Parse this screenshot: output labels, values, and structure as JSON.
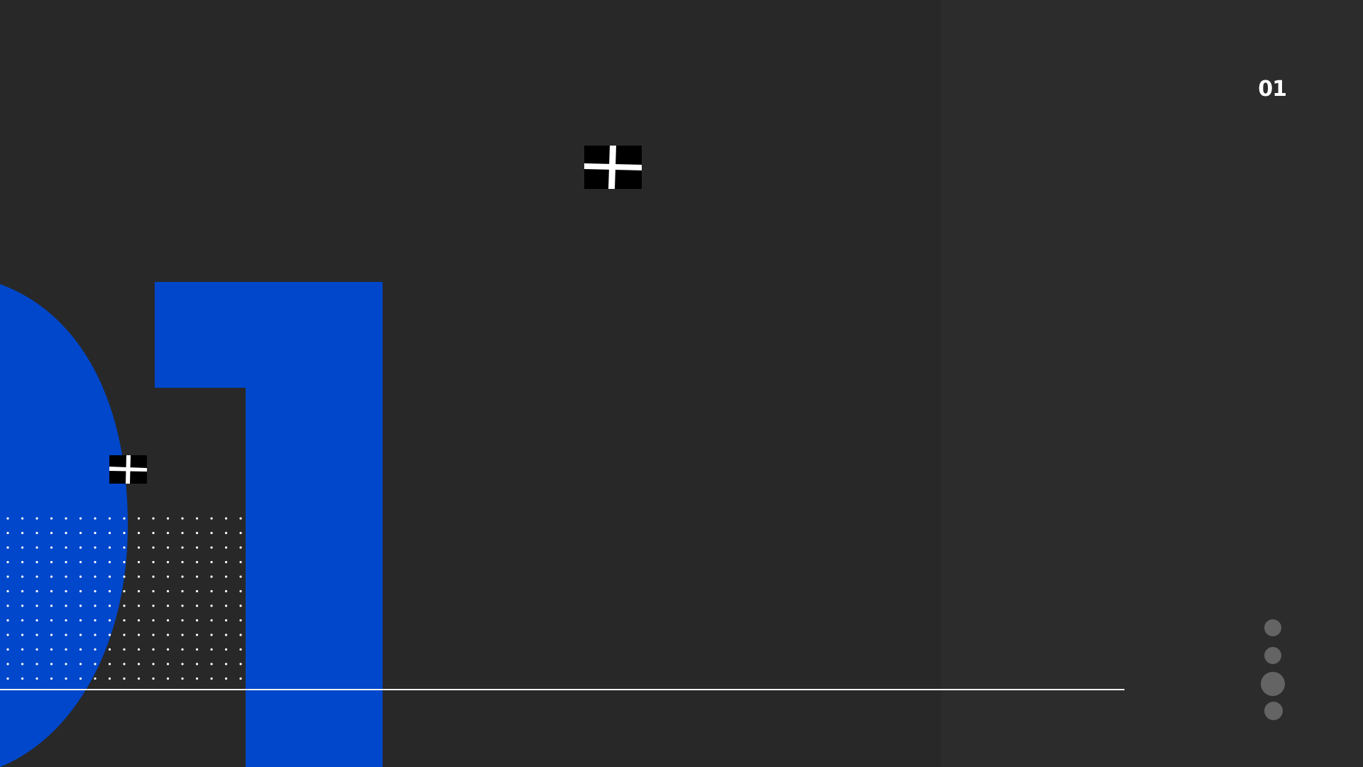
{
  "slide": {
    "number_label": "01"
  },
  "pager": {
    "dots": [
      {
        "label": "slide-1",
        "active": false
      },
      {
        "label": "slide-2",
        "active": false
      },
      {
        "label": "slide-3",
        "active": true
      },
      {
        "label": "slide-4",
        "active": false
      }
    ],
    "dot_color": "#646464"
  },
  "colors": {
    "background": "#282828",
    "panel": "#2c2c2c",
    "accent_blue": "#0047cc",
    "line": "#f2f2f2",
    "plus_bg": "#000000",
    "plus_fg": "#ffffff"
  },
  "icons": {
    "decor_large": "plus-icon",
    "decor_small": "plus-icon"
  }
}
